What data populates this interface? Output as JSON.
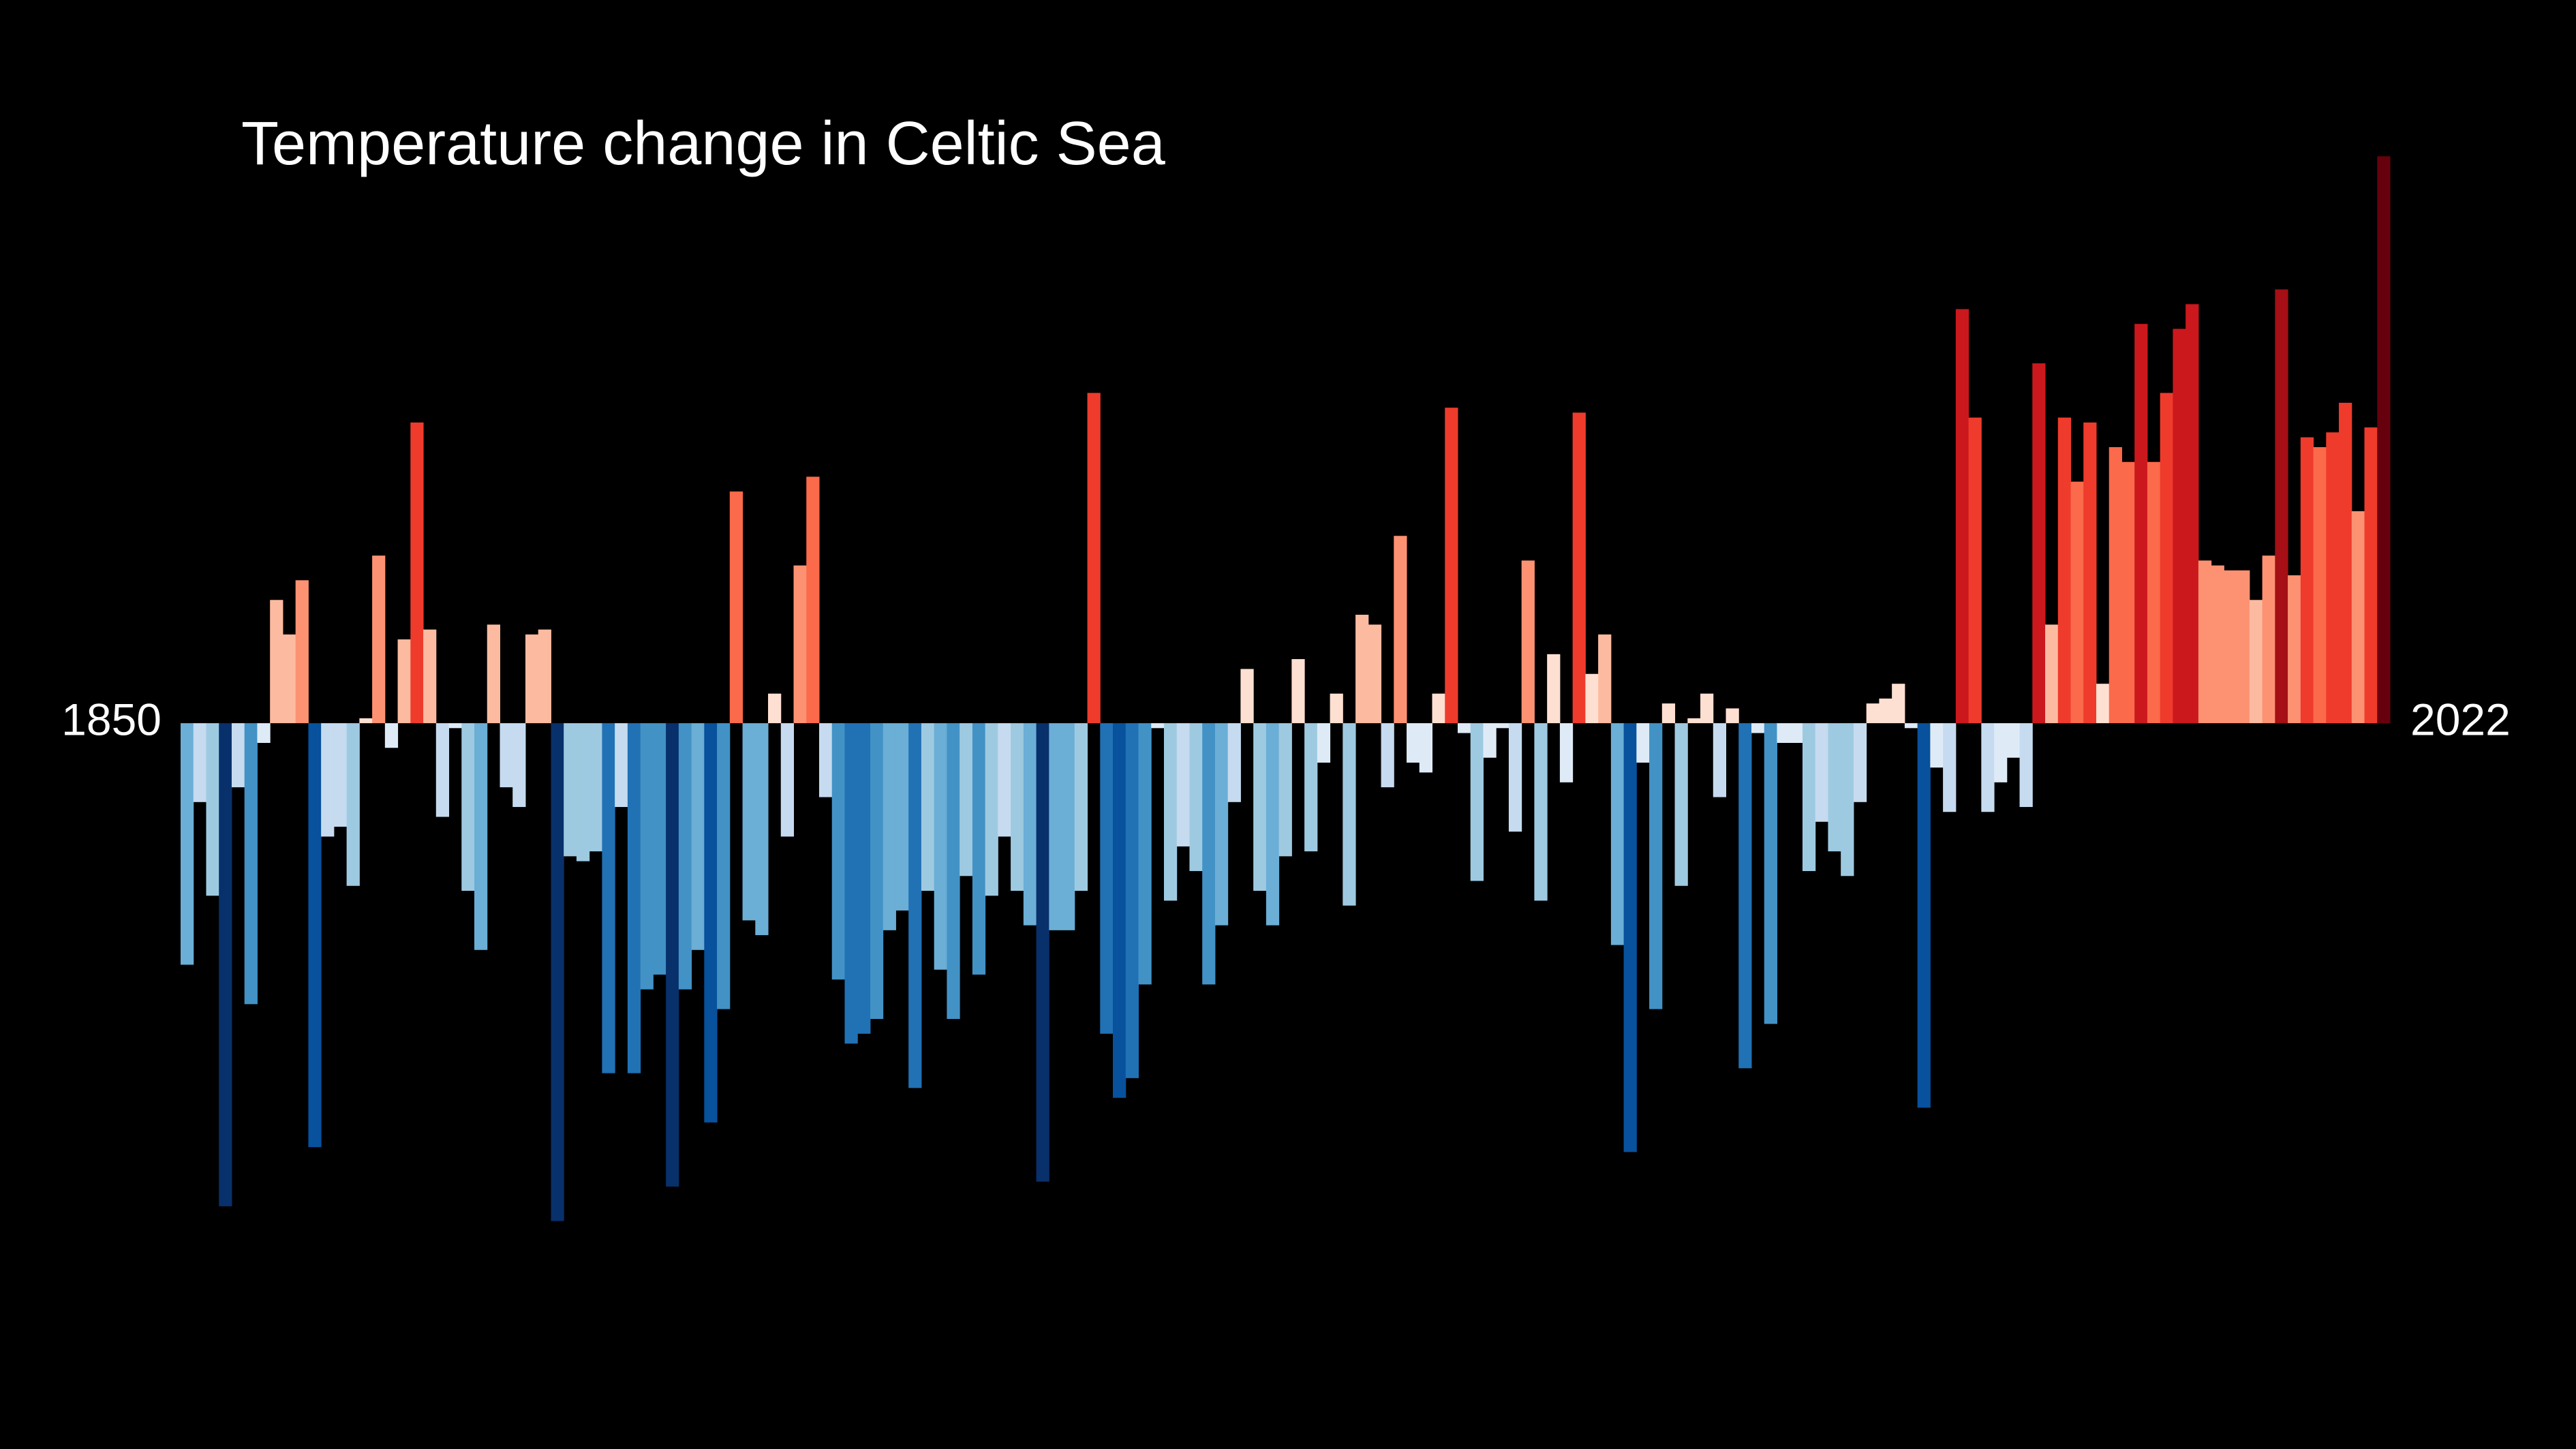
{
  "chart_data": {
    "type": "bar",
    "title": "Temperature change in Celtic Sea",
    "categories": [
      "1850",
      null,
      null,
      null,
      null,
      null,
      null,
      null,
      null,
      null,
      null,
      null,
      null,
      null,
      null,
      null,
      null,
      null,
      null,
      null,
      null,
      null,
      null,
      null,
      null,
      null,
      null,
      null,
      null,
      null,
      null,
      null,
      null,
      null,
      null,
      null,
      null,
      null,
      null,
      null,
      null,
      null,
      null,
      null,
      null,
      null,
      null,
      null,
      null,
      null,
      null,
      null,
      null,
      null,
      null,
      null,
      null,
      null,
      null,
      null,
      null,
      null,
      null,
      null,
      null,
      null,
      null,
      null,
      null,
      null,
      null,
      null,
      null,
      null,
      null,
      null,
      null,
      null,
      null,
      null,
      null,
      null,
      null,
      null,
      null,
      null,
      null,
      null,
      null,
      null,
      null,
      null,
      null,
      null,
      null,
      null,
      null,
      null,
      null,
      null,
      null,
      null,
      null,
      null,
      null,
      null,
      null,
      null,
      null,
      null,
      null,
      null,
      null,
      null,
      null,
      null,
      null,
      null,
      null,
      null,
      null,
      null,
      null,
      null,
      null,
      null,
      null,
      null,
      null,
      null,
      null,
      null,
      null,
      null,
      null,
      null,
      null,
      null,
      null,
      null,
      null,
      null,
      null,
      null,
      null,
      null,
      null,
      null,
      null,
      null,
      null,
      null,
      null,
      null,
      null,
      null,
      null,
      null,
      null,
      null,
      null,
      null,
      null,
      null,
      null,
      null,
      null,
      null,
      null,
      null,
      null,
      null,
      "2022"
    ],
    "values": [
      -0.49,
      -0.16,
      -0.35,
      -0.98,
      -0.13,
      -0.57,
      -0.04,
      0.25,
      0.18,
      0.29,
      -0.86,
      -0.23,
      -0.21,
      -0.33,
      0.01,
      0.34,
      -0.05,
      0.17,
      0.61,
      0.19,
      -0.19,
      -0.01,
      -0.34,
      -0.46,
      0.2,
      -0.13,
      -0.17,
      0.18,
      0.19,
      -1.01,
      -0.27,
      -0.28,
      -0.26,
      -0.71,
      -0.17,
      -0.71,
      -0.54,
      -0.51,
      -0.94,
      -0.54,
      -0.46,
      -0.81,
      -0.58,
      0.47,
      -0.4,
      -0.43,
      0.06,
      -0.23,
      0.32,
      0.5,
      -0.15,
      -0.52,
      -0.65,
      -0.63,
      -0.6,
      -0.42,
      -0.38,
      -0.74,
      -0.34,
      -0.5,
      -0.6,
      -0.31,
      -0.51,
      -0.35,
      -0.23,
      -0.34,
      -0.41,
      -0.93,
      -0.42,
      -0.42,
      -0.34,
      0.67,
      -0.63,
      -0.76,
      -0.72,
      -0.53,
      -0.01,
      -0.36,
      -0.25,
      -0.3,
      -0.53,
      -0.41,
      -0.16,
      0.11,
      -0.34,
      -0.41,
      -0.27,
      0.13,
      -0.26,
      -0.08,
      0.06,
      -0.37,
      0.22,
      0.2,
      -0.13,
      0.38,
      -0.08,
      -0.1,
      0.06,
      0.64,
      -0.02,
      -0.32,
      -0.07,
      -0.01,
      -0.22,
      0.33,
      -0.36,
      0.14,
      -0.12,
      0.63,
      0.1,
      0.18,
      -0.45,
      -0.87,
      -0.08,
      -0.58,
      0.04,
      -0.33,
      0.01,
      0.06,
      -0.15,
      0.03,
      -0.7,
      -0.02,
      -0.61,
      -0.04,
      -0.04,
      -0.3,
      -0.2,
      -0.26,
      -0.31,
      -0.16,
      0.04,
      0.05,
      0.08,
      -0.01,
      -0.78,
      -0.09,
      -0.18,
      0.84,
      0.62,
      -0.18,
      -0.12,
      -0.07,
      -0.17,
      0.73,
      0.2,
      0.62,
      0.49,
      0.61,
      0.08,
      0.56,
      0.53,
      0.81,
      0.53,
      0.67,
      0.8,
      0.85,
      0.33,
      0.32,
      0.31,
      0.31,
      0.25,
      0.34,
      0.88,
      0.3,
      0.58,
      0.56,
      0.59,
      0.65,
      0.43,
      0.6,
      1.15
    ],
    "ylim": [
      -1.2,
      1.25
    ],
    "clim": [
      -1.0,
      1.15
    ],
    "colors": [
      "#08306b",
      "#08519c",
      "#2171b5",
      "#4292c6",
      "#6baed6",
      "#9ecae1",
      "#c6dbef",
      "#deebf7",
      "#fee0d2",
      "#fcbba1",
      "#fc9272",
      "#fb6a4a",
      "#ef3b2c",
      "#cb181d",
      "#a50f15",
      "#67000d"
    ],
    "background": "#000000"
  }
}
